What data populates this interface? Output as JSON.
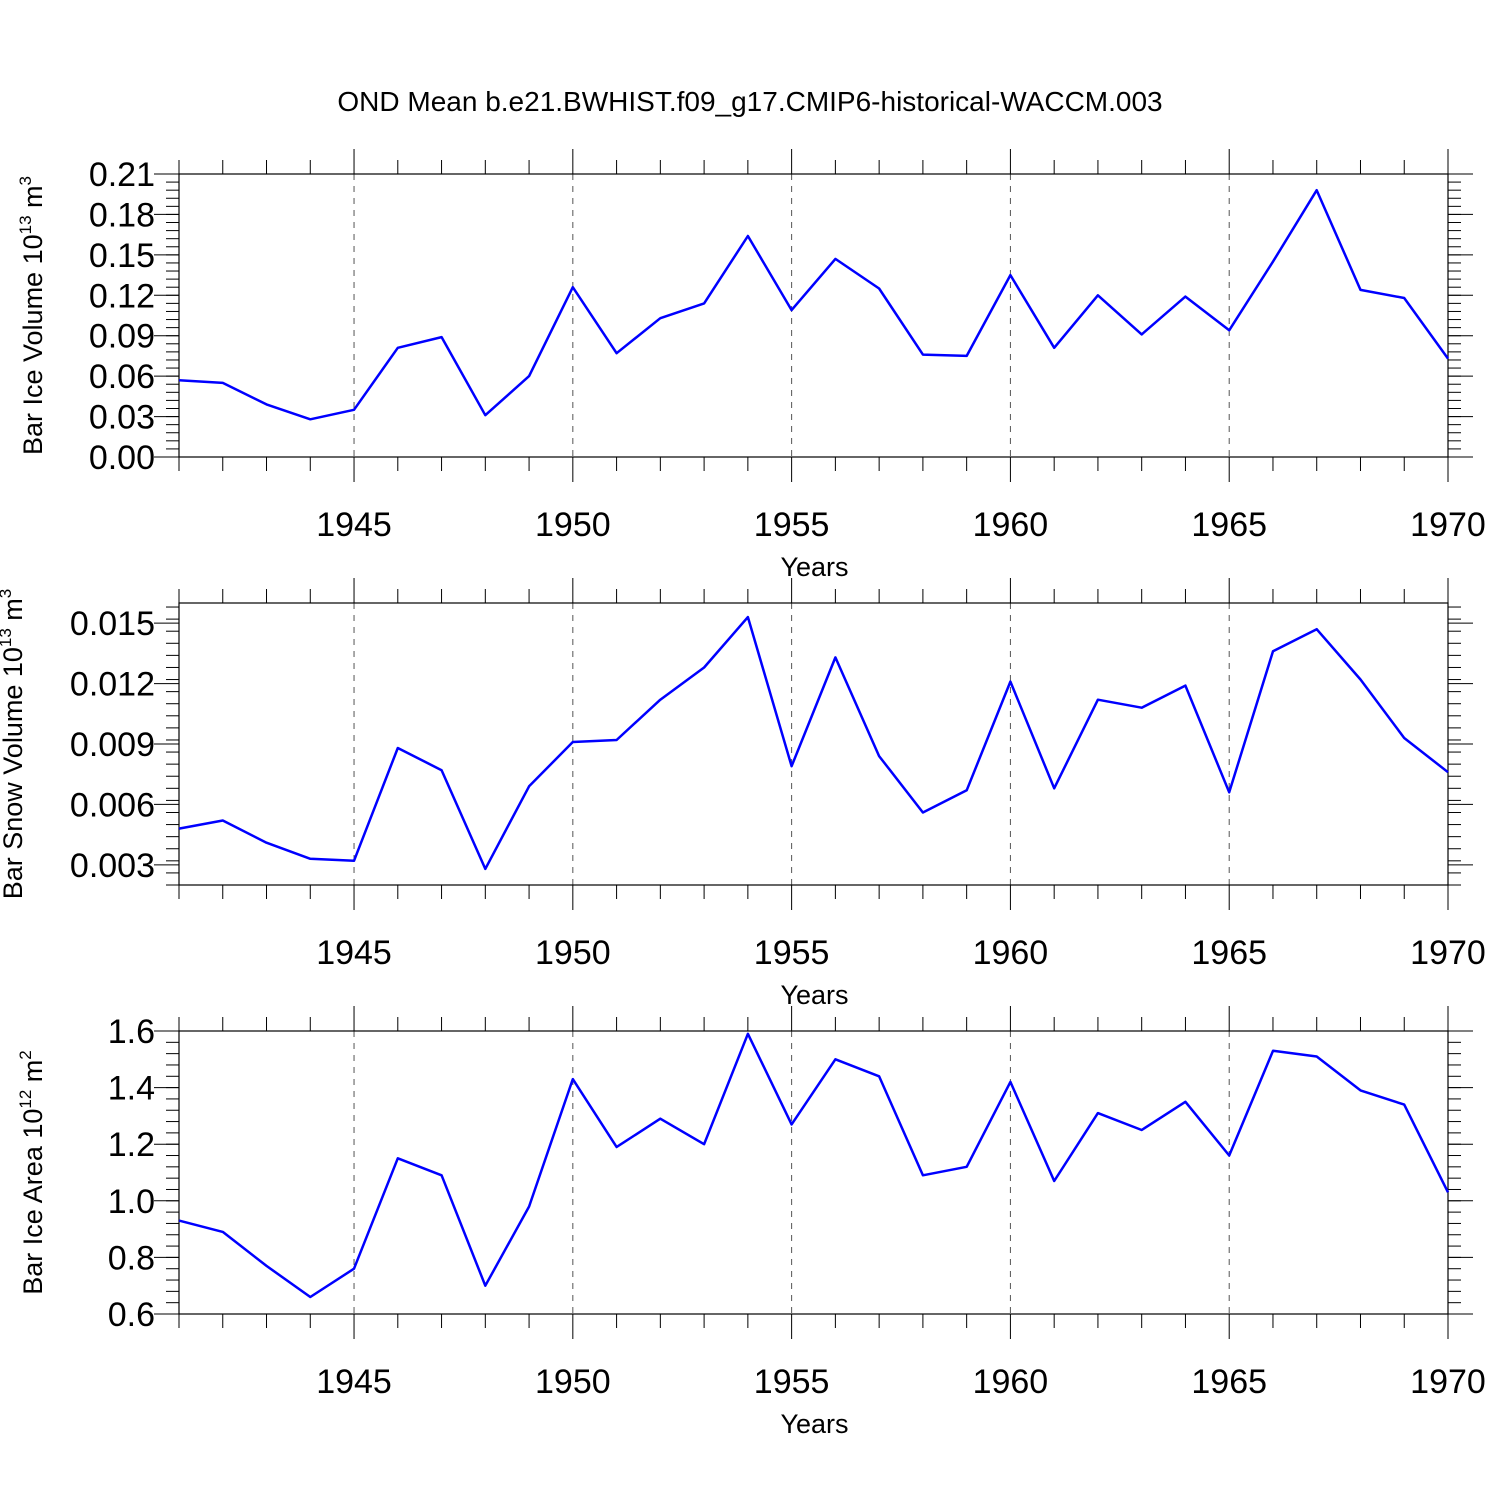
{
  "figure": {
    "title": "OND Mean b.e21.BWHIST.f09_g17.CMIP6-historical-WACCM.003"
  },
  "chart_data": [
    {
      "type": "line",
      "xlabel": "Years",
      "ylabel": {
        "text": "Bar Ice Volume 10",
        "sup": "13",
        "unit": " m",
        "unit_sup": "3"
      },
      "xlim": [
        1941,
        1970
      ],
      "ylim": [
        0.0,
        0.21
      ],
      "xticks_major": [
        1945,
        1950,
        1955,
        1960,
        1965,
        1970
      ],
      "xtick_labels": [
        "1945",
        "1950",
        "1955",
        "1960",
        "1965",
        "1970"
      ],
      "yticks_major": [
        0.0,
        0.03,
        0.06,
        0.09,
        0.12,
        0.15,
        0.18,
        0.21
      ],
      "ytick_labels": [
        "0.00",
        "0.03",
        "0.06",
        "0.09",
        "0.12",
        "0.15",
        "0.18",
        "0.21"
      ],
      "y_minor_step": 0.006,
      "grid": "vertical-dashed-at-major-x",
      "color": "#0000ff",
      "x": [
        1941,
        1942,
        1943,
        1944,
        1945,
        1946,
        1947,
        1948,
        1949,
        1950,
        1951,
        1952,
        1953,
        1954,
        1955,
        1956,
        1957,
        1958,
        1959,
        1960,
        1961,
        1962,
        1963,
        1964,
        1965,
        1966,
        1967,
        1968,
        1969,
        1970
      ],
      "y": [
        0.057,
        0.055,
        0.039,
        0.028,
        0.035,
        0.081,
        0.089,
        0.031,
        0.06,
        0.126,
        0.077,
        0.103,
        0.114,
        0.164,
        0.109,
        0.147,
        0.125,
        0.076,
        0.075,
        0.135,
        0.081,
        0.12,
        0.091,
        0.119,
        0.094,
        0.145,
        0.198,
        0.124,
        0.118,
        0.073
      ]
    },
    {
      "type": "line",
      "xlabel": "Years",
      "ylabel": {
        "text": "Bar Snow Volume 10",
        "sup": "13",
        "unit": " m",
        "unit_sup": "3"
      },
      "xlim": [
        1941,
        1970
      ],
      "ylim": [
        0.002,
        0.016
      ],
      "xticks_major": [
        1945,
        1950,
        1955,
        1960,
        1965,
        1970
      ],
      "xtick_labels": [
        "1945",
        "1950",
        "1955",
        "1960",
        "1965",
        "1970"
      ],
      "yticks_major": [
        0.003,
        0.006,
        0.009,
        0.012,
        0.015
      ],
      "ytick_labels": [
        "0.003",
        "0.006",
        "0.009",
        "0.012",
        "0.015"
      ],
      "y_minor_step": 0.0006,
      "grid": "vertical-dashed-at-major-x",
      "color": "#0000ff",
      "x": [
        1941,
        1942,
        1943,
        1944,
        1945,
        1946,
        1947,
        1948,
        1949,
        1950,
        1951,
        1952,
        1953,
        1954,
        1955,
        1956,
        1957,
        1958,
        1959,
        1960,
        1961,
        1962,
        1963,
        1964,
        1965,
        1966,
        1967,
        1968,
        1969,
        1970
      ],
      "y": [
        0.0048,
        0.0052,
        0.0041,
        0.0033,
        0.0032,
        0.0088,
        0.0077,
        0.0028,
        0.0069,
        0.0091,
        0.0092,
        0.0112,
        0.0128,
        0.0153,
        0.0079,
        0.0133,
        0.0084,
        0.0056,
        0.0067,
        0.0121,
        0.0068,
        0.0112,
        0.0108,
        0.0119,
        0.0066,
        0.0136,
        0.0147,
        0.0122,
        0.0093,
        0.0076
      ]
    },
    {
      "type": "line",
      "xlabel": "Years",
      "ylabel": {
        "text": "Bar Ice Area 10",
        "sup": "12",
        "unit": " m",
        "unit_sup": "2"
      },
      "xlim": [
        1941,
        1970
      ],
      "ylim": [
        0.6,
        1.6
      ],
      "xticks_major": [
        1945,
        1950,
        1955,
        1960,
        1965,
        1970
      ],
      "xtick_labels": [
        "1945",
        "1950",
        "1955",
        "1960",
        "1965",
        "1970"
      ],
      "yticks_major": [
        0.6,
        0.8,
        1.0,
        1.2,
        1.4,
        1.6
      ],
      "ytick_labels": [
        "0.6",
        "0.8",
        "1.0",
        "1.2",
        "1.4",
        "1.6"
      ],
      "y_minor_step": 0.04,
      "grid": "vertical-dashed-at-major-x",
      "color": "#0000ff",
      "x": [
        1941,
        1942,
        1943,
        1944,
        1945,
        1946,
        1947,
        1948,
        1949,
        1950,
        1951,
        1952,
        1953,
        1954,
        1955,
        1956,
        1957,
        1958,
        1959,
        1960,
        1961,
        1962,
        1963,
        1964,
        1965,
        1966,
        1967,
        1968,
        1969,
        1970
      ],
      "y": [
        0.93,
        0.89,
        0.77,
        0.66,
        0.76,
        1.15,
        1.09,
        0.7,
        0.98,
        1.43,
        1.19,
        1.29,
        1.2,
        1.59,
        1.27,
        1.5,
        1.44,
        1.09,
        1.12,
        1.42,
        1.07,
        1.31,
        1.25,
        1.35,
        1.16,
        1.53,
        1.51,
        1.39,
        1.34,
        1.03
      ]
    }
  ]
}
